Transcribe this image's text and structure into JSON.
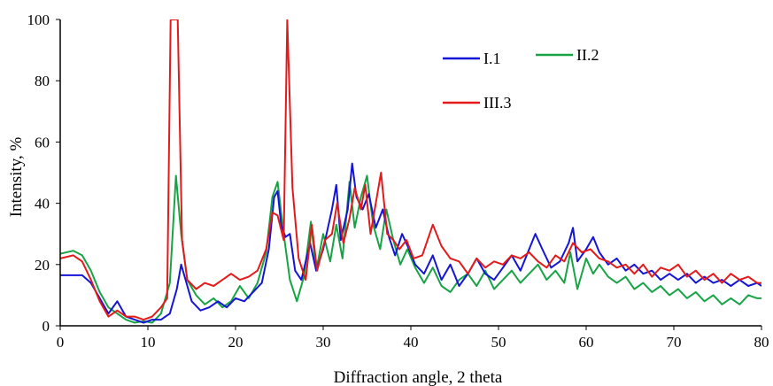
{
  "chart_data": {
    "type": "line",
    "title": "",
    "xlabel": "Diffraction angle, 2 theta",
    "ylabel": "Intensity, %",
    "xlim": [
      0,
      80
    ],
    "ylim": [
      0,
      100
    ],
    "x_ticks": [
      "0",
      "10",
      "20",
      "30",
      "40",
      "50",
      "60",
      "70",
      "80"
    ],
    "y_ticks": [
      "0",
      "20",
      "40",
      "60",
      "80",
      "100"
    ],
    "grid": false,
    "legend_position": "top-right",
    "series": [
      {
        "name": "I.1",
        "color": "#1515d6",
        "points": [
          [
            0,
            16.5
          ],
          [
            2.5,
            16.5
          ],
          [
            3.5,
            14
          ],
          [
            4.5,
            9
          ],
          [
            5.5,
            4
          ],
          [
            6.5,
            8
          ],
          [
            7.5,
            3
          ],
          [
            8.5,
            2
          ],
          [
            9.5,
            1
          ],
          [
            10.5,
            2
          ],
          [
            11.5,
            2
          ],
          [
            12.5,
            4
          ],
          [
            13.3,
            12
          ],
          [
            13.8,
            20
          ],
          [
            14.3,
            15
          ],
          [
            15,
            8
          ],
          [
            16,
            5
          ],
          [
            17,
            6
          ],
          [
            18,
            8
          ],
          [
            19,
            6
          ],
          [
            20,
            9
          ],
          [
            21,
            8
          ],
          [
            22,
            11
          ],
          [
            23,
            14
          ],
          [
            23.8,
            25
          ],
          [
            24.4,
            42
          ],
          [
            24.8,
            44
          ],
          [
            25.2,
            33
          ],
          [
            25.7,
            29
          ],
          [
            26.2,
            30
          ],
          [
            26.8,
            18
          ],
          [
            27.5,
            15
          ],
          [
            28.5,
            27
          ],
          [
            29.2,
            18
          ],
          [
            30,
            25
          ],
          [
            31,
            38
          ],
          [
            31.5,
            46
          ],
          [
            32,
            28
          ],
          [
            32.8,
            38
          ],
          [
            33.3,
            53
          ],
          [
            33.8,
            42
          ],
          [
            34.5,
            38
          ],
          [
            35.2,
            43
          ],
          [
            36,
            32
          ],
          [
            36.8,
            38
          ],
          [
            37.5,
            29
          ],
          [
            38.2,
            23
          ],
          [
            39,
            30
          ],
          [
            39.8,
            25
          ],
          [
            40.5,
            20
          ],
          [
            41.5,
            17
          ],
          [
            42.5,
            23
          ],
          [
            43.5,
            15
          ],
          [
            44.5,
            20
          ],
          [
            45.5,
            13
          ],
          [
            46.5,
            17
          ],
          [
            47.5,
            22
          ],
          [
            48.5,
            17
          ],
          [
            49.5,
            15
          ],
          [
            50.5,
            19
          ],
          [
            51.5,
            23
          ],
          [
            52.5,
            18
          ],
          [
            53.5,
            25
          ],
          [
            54.2,
            30
          ],
          [
            55,
            25
          ],
          [
            56,
            19
          ],
          [
            57,
            21
          ],
          [
            58,
            27
          ],
          [
            58.5,
            32
          ],
          [
            59,
            21
          ],
          [
            60,
            25
          ],
          [
            60.8,
            29
          ],
          [
            61.5,
            24
          ],
          [
            62.5,
            20
          ],
          [
            63.5,
            22
          ],
          [
            64.5,
            18
          ],
          [
            65.5,
            20
          ],
          [
            66.5,
            17
          ],
          [
            67.5,
            18
          ],
          [
            68.5,
            15
          ],
          [
            69.5,
            17
          ],
          [
            70.5,
            15
          ],
          [
            71.5,
            17
          ],
          [
            72.5,
            14
          ],
          [
            73.5,
            16
          ],
          [
            74.5,
            14
          ],
          [
            75.5,
            15
          ],
          [
            76.5,
            13
          ],
          [
            77.5,
            15
          ],
          [
            78.5,
            13
          ],
          [
            79.5,
            14
          ],
          [
            80,
            13
          ]
        ]
      },
      {
        "name": "II.2",
        "color": "#17a445",
        "points": [
          [
            0,
            23.5
          ],
          [
            1.5,
            24.5
          ],
          [
            2.5,
            23
          ],
          [
            3.5,
            18
          ],
          [
            4.5,
            11
          ],
          [
            5.5,
            6
          ],
          [
            6.5,
            4
          ],
          [
            7.5,
            2
          ],
          [
            8.5,
            1
          ],
          [
            9.5,
            1.5
          ],
          [
            10.5,
            1
          ],
          [
            11.5,
            4
          ],
          [
            12.5,
            14
          ],
          [
            13.2,
            49
          ],
          [
            13.8,
            30
          ],
          [
            14.5,
            15
          ],
          [
            15.5,
            10
          ],
          [
            16.5,
            7
          ],
          [
            17.5,
            9
          ],
          [
            18.5,
            6
          ],
          [
            19.5,
            8
          ],
          [
            20.5,
            13
          ],
          [
            21.5,
            9
          ],
          [
            22.5,
            14
          ],
          [
            23.5,
            24
          ],
          [
            24.2,
            42
          ],
          [
            24.8,
            47
          ],
          [
            25.5,
            30
          ],
          [
            26.2,
            15
          ],
          [
            27,
            8
          ],
          [
            27.8,
            16
          ],
          [
            28.6,
            34
          ],
          [
            29.2,
            18
          ],
          [
            30,
            30
          ],
          [
            30.8,
            21
          ],
          [
            31.5,
            33
          ],
          [
            32.2,
            22
          ],
          [
            33,
            47
          ],
          [
            33.6,
            32
          ],
          [
            34.3,
            42
          ],
          [
            35,
            49
          ],
          [
            35.7,
            33
          ],
          [
            36.5,
            25
          ],
          [
            37.2,
            38
          ],
          [
            38,
            28
          ],
          [
            38.8,
            20
          ],
          [
            39.6,
            25
          ],
          [
            40.5,
            19
          ],
          [
            41.5,
            14
          ],
          [
            42.5,
            19
          ],
          [
            43.5,
            13
          ],
          [
            44.5,
            11
          ],
          [
            45.5,
            15
          ],
          [
            46.5,
            17
          ],
          [
            47.5,
            13
          ],
          [
            48.5,
            18
          ],
          [
            49.5,
            12
          ],
          [
            50.5,
            15
          ],
          [
            51.5,
            18
          ],
          [
            52.5,
            14
          ],
          [
            53.5,
            17
          ],
          [
            54.5,
            20
          ],
          [
            55.5,
            15
          ],
          [
            56.5,
            18
          ],
          [
            57.5,
            14
          ],
          [
            58.2,
            24
          ],
          [
            59,
            12
          ],
          [
            60,
            22
          ],
          [
            60.8,
            17
          ],
          [
            61.5,
            20
          ],
          [
            62.5,
            16
          ],
          [
            63.5,
            14
          ],
          [
            64.5,
            16
          ],
          [
            65.5,
            12
          ],
          [
            66.5,
            14
          ],
          [
            67.5,
            11
          ],
          [
            68.5,
            13
          ],
          [
            69.5,
            10
          ],
          [
            70.5,
            12
          ],
          [
            71.5,
            9
          ],
          [
            72.5,
            11
          ],
          [
            73.5,
            8
          ],
          [
            74.5,
            10
          ],
          [
            75.5,
            7
          ],
          [
            76.5,
            9
          ],
          [
            77.5,
            7
          ],
          [
            78.5,
            10
          ],
          [
            79.5,
            9
          ],
          [
            80,
            9
          ]
        ]
      },
      {
        "name": "III.3",
        "color": "#e41a1a",
        "points": [
          [
            0,
            22
          ],
          [
            1.5,
            23
          ],
          [
            2.5,
            21
          ],
          [
            3.5,
            15
          ],
          [
            4.5,
            8
          ],
          [
            5.5,
            3
          ],
          [
            6.5,
            5
          ],
          [
            7.5,
            3
          ],
          [
            8.5,
            3
          ],
          [
            9.5,
            2
          ],
          [
            10.5,
            3
          ],
          [
            11.5,
            6
          ],
          [
            12.2,
            9
          ],
          [
            12.6,
            100
          ],
          [
            13.4,
            100
          ],
          [
            13.9,
            28
          ],
          [
            14.5,
            15
          ],
          [
            15.5,
            12
          ],
          [
            16.5,
            14
          ],
          [
            17.5,
            13
          ],
          [
            18.5,
            15
          ],
          [
            19.5,
            17
          ],
          [
            20.5,
            15
          ],
          [
            21.5,
            16
          ],
          [
            22.5,
            18
          ],
          [
            23.5,
            25
          ],
          [
            24.2,
            37
          ],
          [
            24.8,
            36
          ],
          [
            25.5,
            28
          ],
          [
            25.9,
            100
          ],
          [
            26.5,
            45
          ],
          [
            27.2,
            22
          ],
          [
            28,
            15
          ],
          [
            28.7,
            33
          ],
          [
            29.3,
            18
          ],
          [
            30.2,
            28
          ],
          [
            31,
            30
          ],
          [
            31.6,
            40
          ],
          [
            32.3,
            27
          ],
          [
            33,
            35
          ],
          [
            33.6,
            45
          ],
          [
            34.3,
            38
          ],
          [
            34.8,
            46
          ],
          [
            35.4,
            30
          ],
          [
            36,
            40
          ],
          [
            36.6,
            50
          ],
          [
            37.3,
            30
          ],
          [
            38,
            28
          ],
          [
            38.7,
            25
          ],
          [
            39.5,
            28
          ],
          [
            40.3,
            22
          ],
          [
            41.3,
            23
          ],
          [
            42.5,
            33
          ],
          [
            43.5,
            26
          ],
          [
            44.5,
            22
          ],
          [
            45.5,
            21
          ],
          [
            46.5,
            17
          ],
          [
            47.5,
            22
          ],
          [
            48.5,
            19
          ],
          [
            49.5,
            21
          ],
          [
            50.5,
            20
          ],
          [
            51.5,
            23
          ],
          [
            52.5,
            22
          ],
          [
            53.5,
            24
          ],
          [
            54.5,
            21
          ],
          [
            55.5,
            19
          ],
          [
            56.5,
            23
          ],
          [
            57.5,
            21
          ],
          [
            58.5,
            27
          ],
          [
            59.5,
            24
          ],
          [
            60.5,
            25
          ],
          [
            61.5,
            22
          ],
          [
            62.5,
            21
          ],
          [
            63.5,
            19
          ],
          [
            64.5,
            20
          ],
          [
            65.5,
            17
          ],
          [
            66.5,
            20
          ],
          [
            67.5,
            16
          ],
          [
            68.5,
            19
          ],
          [
            69.5,
            18
          ],
          [
            70.5,
            20
          ],
          [
            71.5,
            16
          ],
          [
            72.5,
            18
          ],
          [
            73.5,
            15
          ],
          [
            74.5,
            17
          ],
          [
            75.5,
            14
          ],
          [
            76.5,
            17
          ],
          [
            77.5,
            15
          ],
          [
            78.5,
            16
          ],
          [
            79.5,
            14
          ],
          [
            80,
            14
          ]
        ]
      }
    ]
  }
}
